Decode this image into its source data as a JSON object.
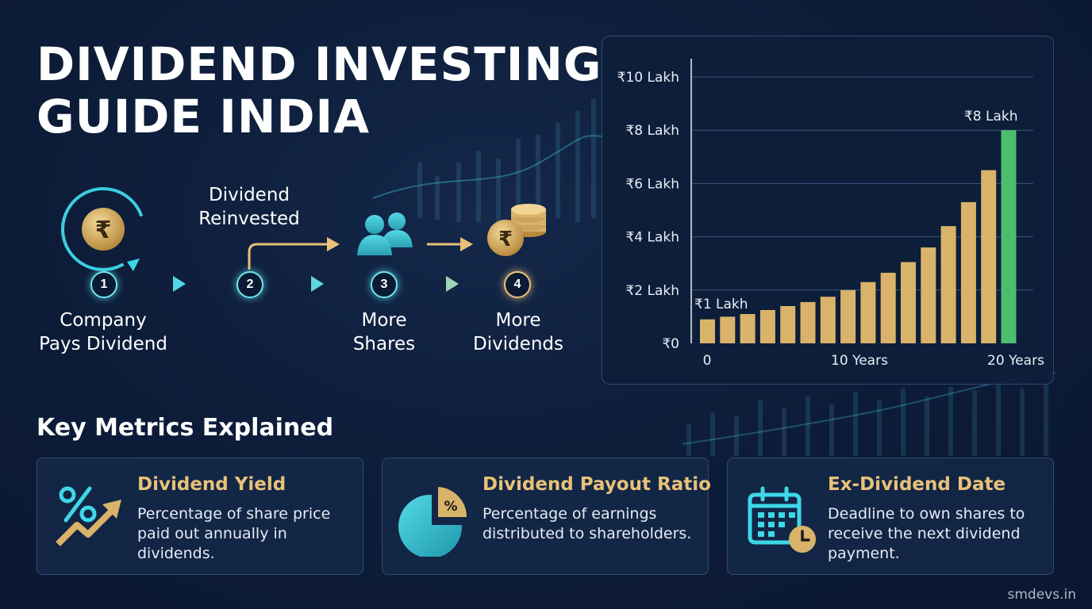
{
  "title": {
    "line1": "DIVIDEND INVESTING",
    "line2": "GUIDE INDIA"
  },
  "flow": {
    "reinvest_label": [
      "Dividend",
      "Reinvested"
    ],
    "steps": [
      {
        "number": "1",
        "label": [
          "Company",
          "Pays Dividend"
        ],
        "icon": "rupee-coin-icon"
      },
      {
        "number": "2",
        "label": [],
        "icon": "reinvest-arrow-icon"
      },
      {
        "number": "3",
        "label": [
          "More",
          "Shares"
        ],
        "icon": "shareholders-icon"
      },
      {
        "number": "4",
        "label": [
          "More",
          "Dividends"
        ],
        "icon": "coins-stack-icon"
      }
    ],
    "colors": {
      "teal": "#52d6e4",
      "gold": "#e8c27a"
    }
  },
  "chart_data": {
    "type": "bar",
    "y_ticks": [
      "₹0",
      "₹2 Lakh",
      "₹4 Lakh",
      "₹6 Lakh",
      "₹8 Lakh",
      "₹10 Lakh"
    ],
    "x_tick_labels": [
      "0",
      "10 Years",
      "20 Years"
    ],
    "ylim": [
      0,
      10
    ],
    "values": [
      0.9,
      1.0,
      1.1,
      1.25,
      1.4,
      1.55,
      1.75,
      2.0,
      2.3,
      2.65,
      3.05,
      3.6,
      4.4,
      5.3,
      6.5,
      8.0
    ],
    "start_label": "₹1 Lakh",
    "end_label": "₹8 Lakh",
    "grid": true,
    "colors": {
      "bars": "#d9b36a",
      "final_bar": "#4bbf6f",
      "end_label": "#6fd68a",
      "start_label": "#e8c27a"
    }
  },
  "metrics": {
    "heading": "Key Metrics Explained",
    "cards": [
      {
        "title": "Dividend Yield",
        "description": "Percentage of share price paid out annually in dividends.",
        "icon": "percent-growth-icon"
      },
      {
        "title": "Dividend Payout Ratio",
        "description": "Percentage of earnings distributed to shareholders.",
        "icon": "pie-chart-icon"
      },
      {
        "title": "Ex-Dividend Date",
        "description": "Deadline to own shares to receive the next dividend payment.",
        "icon": "calendar-clock-icon"
      }
    ]
  },
  "watermark": "smdevs.in"
}
